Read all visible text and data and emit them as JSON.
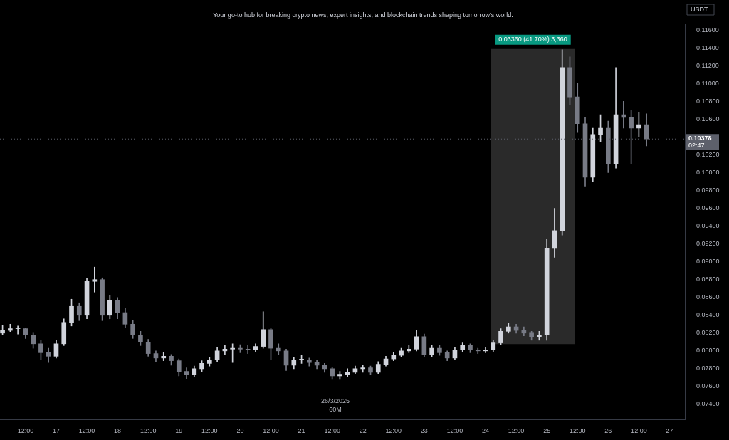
{
  "chart_data": {
    "type": "candlestick",
    "subtitle": "Your go-to hub for breaking crypto news, expert insights, and blockchain trends shaping tomorrow's world.",
    "ylabel": "USDT",
    "colors": [
      "#d1d4dc",
      "#d1d4dc",
      "#d1d4dc",
      "#787b86",
      "#787b86",
      "#787b86",
      "#787b86",
      "#d1d4dc",
      "#d1d4dc",
      "#d1d4dc",
      "#787b86",
      "#d1d4dc",
      "#d1d4dc",
      "#787b86",
      "#d1d4dc",
      "#787b86",
      "#787b86",
      "#787b86",
      "#787b86",
      "#787b86",
      "#787b86",
      "#d1d4dc",
      "#787b86",
      "#787b86",
      "#787b86",
      "#d1d4dc",
      "#d1d4dc",
      "#d1d4dc",
      "#d1d4dc",
      "#d1d4dc",
      "#d1d4dc",
      "#787b86",
      "#787b86",
      "#d1d4dc",
      "#d1d4dc",
      "#787b86",
      "#787b86",
      "#787b86",
      "#d1d4dc",
      "#d1d4dc",
      "#787b86",
      "#787b86",
      "#787b86",
      "#787b86",
      "#d1d4dc",
      "#d1d4dc",
      "#d1d4dc",
      "#d1d4dc",
      "#787b86",
      "#d1d4dc",
      "#d1d4dc",
      "#d1d4dc",
      "#d1d4dc",
      "#d1d4dc",
      "#d1d4dc",
      "#787b86",
      "#d1d4dc",
      "#787b86",
      "#787b86",
      "#d1d4dc",
      "#d1d4dc",
      "#787b86",
      "#787b86",
      "#d1d4dc",
      "#d1d4dc",
      "#d1d4dc",
      "#d1d4dc",
      "#787b86",
      "#787b86",
      "#787b86",
      "#d1d4dc",
      "#d1d4dc",
      "#d1d4dc",
      "#d1d4dc",
      "#787b86",
      "#787b86",
      "#787b86",
      "#d1d4dc",
      "#d1d4dc",
      "#787b86",
      "#d1d4dc",
      "#787b86",
      "#787b86",
      "#d1d4dc",
      "#787b86"
    ],
    "x": [
      "2025-03-16T03:00",
      "2025-03-16T06:00",
      "2025-03-16T09:00",
      "2025-03-16T12:00",
      "2025-03-16T15:00",
      "2025-03-16T18:00",
      "2025-03-16T21:00",
      "2025-03-17T00:00",
      "2025-03-17T03:00",
      "2025-03-17T06:00",
      "2025-03-17T09:00",
      "2025-03-17T12:00",
      "2025-03-17T15:00",
      "2025-03-17T18:00",
      "2025-03-17T21:00",
      "2025-03-18T00:00",
      "2025-03-18T03:00",
      "2025-03-18T06:00",
      "2025-03-18T09:00",
      "2025-03-18T12:00",
      "2025-03-18T15:00",
      "2025-03-18T18:00",
      "2025-03-18T21:00",
      "2025-03-19T00:00",
      "2025-03-19T03:00",
      "2025-03-19T06:00",
      "2025-03-19T09:00",
      "2025-03-19T12:00",
      "2025-03-19T15:00",
      "2025-03-19T18:00",
      "2025-03-19T21:00",
      "2025-03-20T00:00",
      "2025-03-20T03:00",
      "2025-03-20T06:00",
      "2025-03-20T09:00",
      "2025-03-20T12:00",
      "2025-03-20T15:00",
      "2025-03-20T18:00",
      "2025-03-20T21:00",
      "2025-03-21T00:00",
      "2025-03-21T03:00",
      "2025-03-21T06:00",
      "2025-03-21T09:00",
      "2025-03-21T12:00",
      "2025-03-21T15:00",
      "2025-03-21T18:00",
      "2025-03-21T21:00",
      "2025-03-22T00:00",
      "2025-03-22T03:00",
      "2025-03-22T06:00",
      "2025-03-22T09:00",
      "2025-03-22T12:00",
      "2025-03-22T15:00",
      "2025-03-22T18:00",
      "2025-03-22T21:00",
      "2025-03-23T00:00",
      "2025-03-23T03:00",
      "2025-03-23T06:00",
      "2025-03-23T09:00",
      "2025-03-23T12:00",
      "2025-03-23T15:00",
      "2025-03-23T18:00",
      "2025-03-23T21:00",
      "2025-03-24T00:00",
      "2025-03-24T03:00",
      "2025-03-24T06:00",
      "2025-03-24T09:00",
      "2025-03-24T12:00",
      "2025-03-24T15:00",
      "2025-03-24T18:00",
      "2025-03-24T21:00",
      "2025-03-25T00:00",
      "2025-03-25T03:00",
      "2025-03-25T06:00",
      "2025-03-25T09:00",
      "2025-03-25T12:00",
      "2025-03-25T15:00",
      "2025-03-25T18:00",
      "2025-03-25T21:00",
      "2025-03-26T00:00",
      "2025-03-26T03:00",
      "2025-03-26T06:00",
      "2025-03-26T09:00",
      "2025-03-26T12:00",
      "2025-03-26T15:00"
    ],
    "ohlc": [
      [
        0.082,
        0.0829,
        0.0818,
        0.0823
      ],
      [
        0.0823,
        0.083,
        0.0821,
        0.0825
      ],
      [
        0.0825,
        0.0828,
        0.0819,
        0.0825
      ],
      [
        0.0825,
        0.0826,
        0.0814,
        0.0818
      ],
      [
        0.0818,
        0.082,
        0.0803,
        0.0808
      ],
      [
        0.0808,
        0.0812,
        0.079,
        0.0798
      ],
      [
        0.0798,
        0.0803,
        0.0787,
        0.0794
      ],
      [
        0.0794,
        0.0812,
        0.0792,
        0.0808
      ],
      [
        0.0808,
        0.0836,
        0.0806,
        0.0832
      ],
      [
        0.0832,
        0.0858,
        0.0828,
        0.085
      ],
      [
        0.085,
        0.0854,
        0.0834,
        0.084
      ],
      [
        0.084,
        0.0882,
        0.0836,
        0.0878
      ],
      [
        0.0878,
        0.0894,
        0.0866,
        0.088
      ],
      [
        0.088,
        0.0882,
        0.0834,
        0.084
      ],
      [
        0.084,
        0.0862,
        0.0836,
        0.0857
      ],
      [
        0.0857,
        0.086,
        0.0836,
        0.0843
      ],
      [
        0.0843,
        0.0848,
        0.0826,
        0.083
      ],
      [
        0.083,
        0.0834,
        0.0814,
        0.0818
      ],
      [
        0.0818,
        0.0822,
        0.0806,
        0.081
      ],
      [
        0.081,
        0.0813,
        0.0794,
        0.0797
      ],
      [
        0.0797,
        0.08,
        0.0788,
        0.0792
      ],
      [
        0.0792,
        0.0798,
        0.0789,
        0.0794
      ],
      [
        0.0794,
        0.0796,
        0.0784,
        0.0789
      ],
      [
        0.0789,
        0.0791,
        0.0772,
        0.0777
      ],
      [
        0.0777,
        0.0781,
        0.0769,
        0.0773
      ],
      [
        0.0773,
        0.0783,
        0.0771,
        0.078
      ],
      [
        0.078,
        0.0789,
        0.0777,
        0.0786
      ],
      [
        0.0786,
        0.0793,
        0.0783,
        0.079
      ],
      [
        0.079,
        0.0804,
        0.0788,
        0.08
      ],
      [
        0.08,
        0.0806,
        0.0796,
        0.0802
      ],
      [
        0.0802,
        0.0808,
        0.0787,
        0.0803
      ],
      [
        0.0803,
        0.0807,
        0.0798,
        0.0802
      ],
      [
        0.0802,
        0.0806,
        0.0797,
        0.0801
      ],
      [
        0.0801,
        0.0808,
        0.0799,
        0.0805
      ],
      [
        0.0805,
        0.0844,
        0.0803,
        0.0824
      ],
      [
        0.0824,
        0.0826,
        0.079,
        0.0803
      ],
      [
        0.0803,
        0.0808,
        0.0796,
        0.08
      ],
      [
        0.08,
        0.0802,
        0.0778,
        0.0784
      ],
      [
        0.0784,
        0.0793,
        0.078,
        0.079
      ],
      [
        0.079,
        0.0795,
        0.0786,
        0.079
      ],
      [
        0.079,
        0.0792,
        0.0783,
        0.0787
      ],
      [
        0.0787,
        0.079,
        0.078,
        0.0784
      ],
      [
        0.0784,
        0.0786,
        0.0776,
        0.078
      ],
      [
        0.078,
        0.0782,
        0.0768,
        0.0772
      ],
      [
        0.0772,
        0.0777,
        0.0768,
        0.0773
      ],
      [
        0.0773,
        0.078,
        0.0771,
        0.0776
      ],
      [
        0.0776,
        0.0783,
        0.0774,
        0.078
      ],
      [
        0.078,
        0.0784,
        0.0776,
        0.0781
      ],
      [
        0.0781,
        0.0783,
        0.0773,
        0.0776
      ],
      [
        0.0776,
        0.0788,
        0.0774,
        0.0785
      ],
      [
        0.0785,
        0.0794,
        0.0783,
        0.0791
      ],
      [
        0.0791,
        0.0798,
        0.0789,
        0.0795
      ],
      [
        0.0795,
        0.0803,
        0.0793,
        0.08
      ],
      [
        0.08,
        0.0806,
        0.0798,
        0.0802
      ],
      [
        0.0802,
        0.0823,
        0.08,
        0.0816
      ],
      [
        0.0816,
        0.0819,
        0.0793,
        0.0796
      ],
      [
        0.0796,
        0.0806,
        0.0793,
        0.0803
      ],
      [
        0.0803,
        0.0806,
        0.0795,
        0.0798
      ],
      [
        0.0798,
        0.08,
        0.0789,
        0.0792
      ],
      [
        0.0792,
        0.0804,
        0.079,
        0.0801
      ],
      [
        0.0801,
        0.0809,
        0.0799,
        0.0806
      ],
      [
        0.0806,
        0.0808,
        0.0798,
        0.0801
      ],
      [
        0.0801,
        0.0803,
        0.0797,
        0.08
      ],
      [
        0.08,
        0.0804,
        0.0798,
        0.0801
      ],
      [
        0.0801,
        0.0812,
        0.0799,
        0.0809
      ],
      [
        0.0809,
        0.0825,
        0.0807,
        0.0822
      ],
      [
        0.0822,
        0.0831,
        0.082,
        0.0827
      ],
      [
        0.0827,
        0.083,
        0.082,
        0.0823
      ],
      [
        0.0823,
        0.0827,
        0.0817,
        0.082
      ],
      [
        0.082,
        0.0822,
        0.0812,
        0.0816
      ],
      [
        0.0816,
        0.0822,
        0.0812,
        0.0818
      ],
      [
        0.0818,
        0.0925,
        0.0812,
        0.0915
      ],
      [
        0.0915,
        0.096,
        0.0905,
        0.0935
      ],
      [
        0.0935,
        0.1138,
        0.093,
        0.1118
      ],
      [
        0.1118,
        0.113,
        0.1076,
        0.1085
      ],
      [
        0.1085,
        0.11,
        0.1045,
        0.1055
      ],
      [
        0.1055,
        0.1062,
        0.0985,
        0.0995
      ],
      [
        0.0995,
        0.105,
        0.099,
        0.1043
      ],
      [
        0.1043,
        0.1065,
        0.1035,
        0.105
      ],
      [
        0.105,
        0.1058,
        0.1,
        0.101
      ],
      [
        0.101,
        0.1118,
        0.1005,
        0.1065
      ],
      [
        0.1065,
        0.108,
        0.105,
        0.1062
      ],
      [
        0.1062,
        0.107,
        0.101,
        0.105
      ],
      [
        0.105,
        0.1068,
        0.104,
        0.1054
      ],
      [
        0.1054,
        0.1066,
        0.103,
        0.10378
      ]
    ],
    "xlim": [
      "2025-03-16T02:00",
      "2025-03-27T06:00"
    ],
    "xticks": [
      {
        "value": "2025-03-16T12:00",
        "label": "12:00"
      },
      {
        "value": "2025-03-17T00:00",
        "label": "17"
      },
      {
        "value": "2025-03-17T12:00",
        "label": "12:00"
      },
      {
        "value": "2025-03-18T00:00",
        "label": "18"
      },
      {
        "value": "2025-03-18T12:00",
        "label": "12:00"
      },
      {
        "value": "2025-03-19T00:00",
        "label": "19"
      },
      {
        "value": "2025-03-19T12:00",
        "label": "12:00"
      },
      {
        "value": "2025-03-20T00:00",
        "label": "20"
      },
      {
        "value": "2025-03-20T12:00",
        "label": "12:00"
      },
      {
        "value": "2025-03-21T00:00",
        "label": "21"
      },
      {
        "value": "2025-03-21T12:00",
        "label": "12:00"
      },
      {
        "value": "2025-03-22T00:00",
        "label": "22"
      },
      {
        "value": "2025-03-22T12:00",
        "label": "12:00"
      },
      {
        "value": "2025-03-23T00:00",
        "label": "23"
      },
      {
        "value": "2025-03-23T12:00",
        "label": "12:00"
      },
      {
        "value": "2025-03-24T00:00",
        "label": "24"
      },
      {
        "value": "2025-03-24T12:00",
        "label": "12:00"
      },
      {
        "value": "2025-03-25T00:00",
        "label": "25"
      },
      {
        "value": "2025-03-25T12:00",
        "label": "12:00"
      },
      {
        "value": "2025-03-26T00:00",
        "label": "26"
      },
      {
        "value": "2025-03-26T12:00",
        "label": "12:00"
      },
      {
        "value": "2025-03-27T00:00",
        "label": "27"
      }
    ],
    "ylim": [
      0.0723,
      0.1166
    ],
    "yticks": [
      {
        "value": 0.074,
        "label": "0.07400"
      },
      {
        "value": 0.076,
        "label": "0.07600"
      },
      {
        "value": 0.078,
        "label": "0.07800"
      },
      {
        "value": 0.08,
        "label": "0.08000"
      },
      {
        "value": 0.082,
        "label": "0.08200"
      },
      {
        "value": 0.084,
        "label": "0.08400"
      },
      {
        "value": 0.086,
        "label": "0.08600"
      },
      {
        "value": 0.088,
        "label": "0.08800"
      },
      {
        "value": 0.09,
        "label": "0.09000"
      },
      {
        "value": 0.092,
        "label": "0.09200"
      },
      {
        "value": 0.094,
        "label": "0.09400"
      },
      {
        "value": 0.096,
        "label": "0.09600"
      },
      {
        "value": 0.098,
        "label": "0.09800"
      },
      {
        "value": 0.1,
        "label": "0.10000"
      },
      {
        "value": 0.102,
        "label": "0.10200"
      },
      {
        "value": 0.106,
        "label": "0.10600"
      },
      {
        "value": 0.108,
        "label": "0.10800"
      },
      {
        "value": 0.11,
        "label": "0.11000"
      },
      {
        "value": 0.112,
        "label": "0.11200"
      },
      {
        "value": 0.114,
        "label": "0.11400"
      },
      {
        "value": 0.116,
        "label": "0.11600"
      }
    ],
    "bands": [
      {
        "axis": "x",
        "from": "2025-03-24T02:00",
        "to": "2025-03-25T11:00",
        "label": "0.03360 (41.70%) 3,360",
        "color": "#2a2a2a"
      }
    ],
    "ref_lines": [
      {
        "axis": "y",
        "value": 0.10378,
        "label": "0.10378",
        "color": "#5d606b",
        "line_style": "dotted"
      }
    ],
    "annotations": [
      "02:47",
      "26/3/2025",
      "60M"
    ]
  }
}
